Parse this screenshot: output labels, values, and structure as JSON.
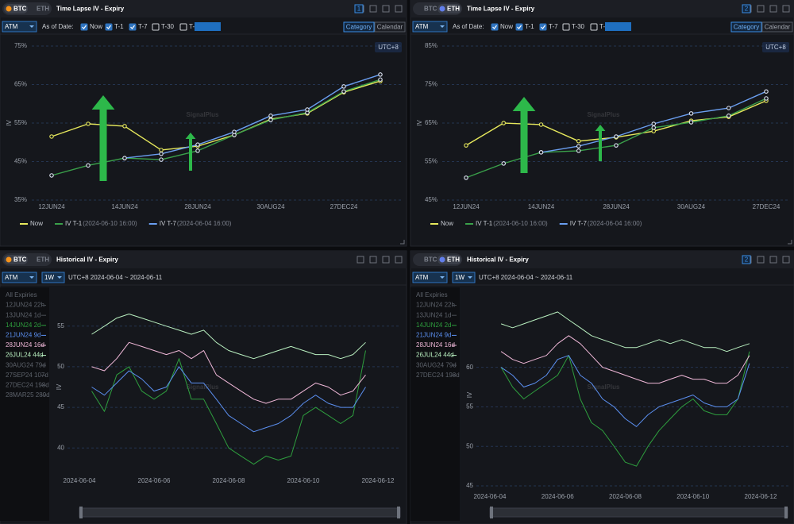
{
  "panels": [
    {
      "tabs": [
        "BTC",
        "ETH"
      ],
      "active_tab": 0,
      "active_icon_color": "#f7931a",
      "title": "Time Lapse IV - Expiry",
      "panel_number": "1",
      "dropdowns": [
        "ATM"
      ],
      "as_of_label": "As of Date:",
      "options": [
        {
          "label": "Now",
          "checked": true
        },
        {
          "label": "T-1",
          "checked": true
        },
        {
          "label": "T-7",
          "checked": true
        },
        {
          "label": "T-30",
          "checked": false
        },
        {
          "label": "T-",
          "checked": false
        }
      ],
      "view_tabs": [
        "Category",
        "Calendar"
      ],
      "active_view": 0,
      "timezone": "UTC+8"
    },
    {
      "tabs": [
        "BTC",
        "ETH"
      ],
      "active_tab": 1,
      "active_icon_color": "#627eea",
      "title": "Time Lapse IV - Expiry",
      "panel_number": "2",
      "dropdowns": [
        "ATM"
      ],
      "as_of_label": "As of Date:",
      "options": [
        {
          "label": "Now",
          "checked": true
        },
        {
          "label": "T-1",
          "checked": true
        },
        {
          "label": "T-7",
          "checked": true
        },
        {
          "label": "T-30",
          "checked": false
        },
        {
          "label": "T-",
          "checked": false
        }
      ],
      "view_tabs": [
        "Category",
        "Calendar"
      ],
      "active_view": 0,
      "timezone": "UTC+8"
    },
    {
      "tabs": [
        "BTC",
        "ETH"
      ],
      "active_tab": 0,
      "active_icon_color": "#f7931a",
      "title": "Historical IV - Expiry",
      "dropdowns": [
        "ATM",
        "1W"
      ],
      "range_text": "UTC+8 2024-06-04 ~ 2024-06-11"
    },
    {
      "tabs": [
        "BTC",
        "ETH"
      ],
      "active_tab": 1,
      "active_icon_color": "#627eea",
      "title": "Historical IV - Expiry",
      "panel_number": "2",
      "dropdowns": [
        "ATM",
        "1W"
      ],
      "range_text": "UTC+8 2024-06-04 ~ 2024-06-11"
    }
  ],
  "chart_data": [
    {
      "type": "line",
      "watermark": "SignalPlus",
      "y_label": "IV",
      "categories": [
        "12JUN24",
        null,
        "14JUN24",
        null,
        "28JUN24",
        null,
        "30AUG24",
        null,
        "27DEC24",
        null
      ],
      "ylim": [
        35,
        75
      ],
      "yticks": [
        {
          "value": 35,
          "label": "35%"
        },
        {
          "value": 45,
          "label": "45%"
        },
        {
          "value": 55,
          "label": "55%"
        },
        {
          "value": 65,
          "label": "65%"
        },
        {
          "value": 75,
          "label": "75%"
        }
      ],
      "grid": true,
      "series": [
        {
          "name": "Now",
          "color": "#e6e85c",
          "values": [
            51.5,
            54.8,
            54.2,
            48,
            49,
            51.9,
            56,
            57.5,
            63,
            65.9
          ]
        },
        {
          "name": "IV T-1",
          "as_of": "(2024-06-10 16:00)",
          "color": "#3aa04a",
          "values": [
            41.4,
            44,
            45.9,
            45.5,
            47.8,
            51.9,
            55.8,
            57.7,
            63.2,
            66.3
          ]
        },
        {
          "name": "IV T-7",
          "as_of": "(2024-06-04 16:00)",
          "color": "#6a9ef0",
          "values": [
            null,
            null,
            45.9,
            47,
            49.4,
            52.7,
            56.9,
            58.5,
            64.5,
            67.6
          ]
        }
      ]
    },
    {
      "type": "line",
      "watermark": "SignalPlus",
      "y_label": "IV",
      "categories": [
        "12JUN24",
        null,
        "14JUN24",
        null,
        "28JUN24",
        null,
        "30AUG24",
        null,
        "27DEC24"
      ],
      "ylim": [
        45,
        85
      ],
      "yticks": [
        {
          "value": 45,
          "label": "45%"
        },
        {
          "value": 55,
          "label": "55%"
        },
        {
          "value": 65,
          "label": "65%"
        },
        {
          "value": 75,
          "label": "75%"
        },
        {
          "value": 85,
          "label": "85%"
        }
      ],
      "grid": true,
      "series": [
        {
          "name": "Now",
          "color": "#e6e85c",
          "values": [
            59.2,
            65,
            64.6,
            60.3,
            61.3,
            62.9,
            65.6,
            66.6,
            70.8
          ]
        },
        {
          "name": "IV T-1",
          "as_of": "(2024-06-10 16:00)",
          "color": "#3aa04a",
          "values": [
            50.8,
            54.5,
            57.4,
            57.8,
            59.2,
            63.8,
            65.2,
            66.9,
            71.4
          ]
        },
        {
          "name": "IV T-7",
          "as_of": "(2024-06-04 16:00)",
          "color": "#6a9ef0",
          "values": [
            null,
            null,
            57.4,
            59,
            61.5,
            64.8,
            67.5,
            68.9,
            73.2
          ]
        }
      ]
    },
    {
      "type": "line",
      "watermark": "SignalPlus",
      "y_label": "IV",
      "x": [
        4.33,
        4.67,
        5,
        5.33,
        5.67,
        6,
        6.33,
        6.67,
        7,
        7.33,
        7.67,
        8,
        8.33,
        8.67,
        9,
        9.33,
        9.67,
        10,
        10.33,
        10.67,
        11,
        11.33,
        11.67
      ],
      "xlim": [
        4,
        12
      ],
      "xticks": [
        {
          "value": 4,
          "label": "2024-06-04"
        },
        {
          "value": 6,
          "label": "2024-06-06"
        },
        {
          "value": 8,
          "label": "2024-06-08"
        },
        {
          "value": 10,
          "label": "2024-06-10"
        },
        {
          "value": 12,
          "label": "2024-06-12"
        }
      ],
      "ylim": [
        36.5,
        58.5
      ],
      "yticks": [
        40,
        45,
        50,
        55
      ],
      "grid": true,
      "legend_before": [
        "All Expiries",
        "12JUN24 22h",
        "13JUN24 1d"
      ],
      "legend_after": [
        "30AUG24 79d",
        "27SEP24 107d",
        "27DEC24 198d",
        "28MAR25 289d"
      ],
      "series": [
        {
          "name": "14JUN24 2d",
          "color": "#2e9e3e",
          "values": [
            47,
            44.5,
            49,
            50,
            47,
            46,
            47,
            51,
            46,
            46,
            43,
            40,
            39,
            38,
            39,
            38.5,
            39,
            44,
            45,
            44,
            43,
            44,
            52
          ]
        },
        {
          "name": "21JUN24 9d",
          "color": "#5b8ff0",
          "values": [
            47.5,
            46.5,
            48,
            49.5,
            48.5,
            47,
            47.5,
            50,
            48,
            48,
            46,
            44,
            43,
            42,
            42.5,
            43,
            44,
            45.5,
            46.5,
            45.5,
            45,
            45,
            47.5
          ]
        },
        {
          "name": "28JUN24 16d",
          "color": "#f0b8d8",
          "values": [
            50,
            49.5,
            51,
            53,
            52.5,
            52,
            51.5,
            52,
            51,
            52,
            49,
            48,
            47,
            46,
            45.5,
            46,
            46,
            47,
            48,
            47.5,
            46.5,
            47,
            49
          ]
        },
        {
          "name": "26JUL24 44d",
          "color": "#b9f0c0",
          "values": [
            54,
            55,
            56,
            56.5,
            56,
            55.5,
            55,
            54.5,
            54,
            54.5,
            53,
            52,
            51.5,
            51,
            51.5,
            52,
            52.5,
            52,
            51.5,
            51.5,
            51,
            51.5,
            53
          ]
        }
      ]
    },
    {
      "type": "line",
      "watermark": "SignalPlus",
      "y_label": "IV",
      "x": [
        4.33,
        4.67,
        5,
        5.33,
        5.67,
        6,
        6.33,
        6.67,
        7,
        7.33,
        7.67,
        8,
        8.33,
        8.67,
        9,
        9.33,
        9.67,
        10,
        10.33,
        10.67,
        11,
        11.33,
        11.67
      ],
      "xlim": [
        4,
        12
      ],
      "xticks": [
        {
          "value": 4,
          "label": "2024-06-04"
        },
        {
          "value": 6,
          "label": "2024-06-06"
        },
        {
          "value": 8,
          "label": "2024-06-08"
        },
        {
          "value": 10,
          "label": "2024-06-10"
        },
        {
          "value": 12,
          "label": "2024-06-12"
        }
      ],
      "ylim": [
        44.2,
        68.8
      ],
      "yticks": [
        45,
        50,
        55,
        60
      ],
      "grid": true,
      "legend_before": [
        "All Expiries",
        "12JUN24 22h",
        "13JUN24 1d"
      ],
      "legend_after": [
        "30AUG24 79d",
        "27DEC24 198d"
      ],
      "series": [
        {
          "name": "14JUN24 2d",
          "color": "#2e9e3e",
          "values": [
            60,
            57.5,
            56,
            57,
            58,
            59,
            61.5,
            56,
            53,
            52,
            50,
            48,
            47.5,
            50,
            52,
            53.5,
            55,
            56,
            54.5,
            54,
            54,
            56,
            62
          ]
        },
        {
          "name": "21JUN24 9d",
          "color": "#5b8ff0",
          "values": [
            60,
            59,
            57.5,
            58,
            59,
            61,
            61.5,
            59,
            58,
            56,
            55,
            53.5,
            52.5,
            54,
            55,
            55.5,
            56,
            56.5,
            55.5,
            55,
            55,
            56,
            60.5
          ]
        },
        {
          "name": "28JUN24 16d",
          "color": "#f0b8d8",
          "values": [
            62,
            61,
            60.5,
            61,
            61.5,
            63,
            64,
            63,
            61.5,
            60,
            59.5,
            59,
            58.5,
            58,
            58,
            58.5,
            59,
            58.5,
            58.5,
            58,
            58,
            59,
            61.5
          ]
        },
        {
          "name": "26JUL24 44d",
          "color": "#b9f0c0",
          "values": [
            65.5,
            65,
            65.5,
            66,
            66.5,
            67,
            66,
            65,
            64,
            63.5,
            63,
            62.5,
            62.5,
            63,
            63.5,
            63,
            63.5,
            63,
            62.5,
            62.5,
            62,
            62.5,
            63
          ]
        }
      ]
    }
  ]
}
